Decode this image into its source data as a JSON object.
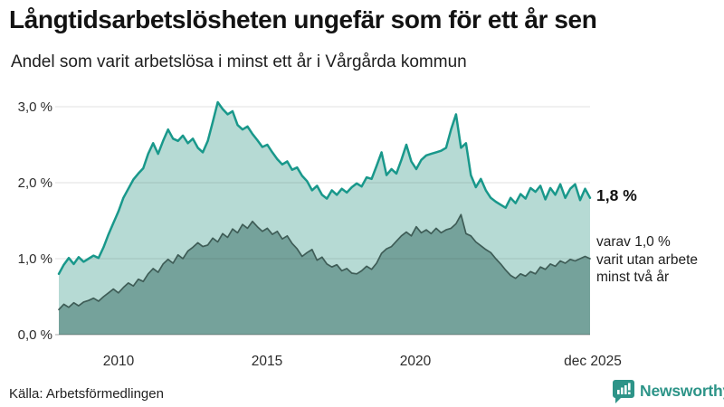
{
  "chart_data": {
    "type": "area",
    "title": "Långtidsarbetslösheten ungefär som för ett år sen",
    "subtitle": "Andel som varit arbetslösa i minst ett år i Vårgårda kommun",
    "x_start_year": 2008,
    "points_per_year": 6,
    "x_end_label": "dec 2025",
    "ylim": [
      0,
      3.2
    ],
    "grid": true,
    "legend_position": "none",
    "unit": "%",
    "yticks": [
      {
        "value": 0,
        "label": "0,0 %"
      },
      {
        "value": 1,
        "label": "1,0 %"
      },
      {
        "value": 2,
        "label": "2,0 %"
      },
      {
        "value": 3,
        "label": "3,0 %"
      }
    ],
    "xticks": [
      {
        "year": 2010,
        "label": "2010"
      },
      {
        "year": 2015,
        "label": "2015"
      },
      {
        "year": 2020,
        "label": "2020"
      },
      {
        "year": 2025.9,
        "label": "dec 2025"
      }
    ],
    "series": [
      {
        "name": "Andel som varit arbetslösa i minst ett år",
        "line_color": "#19988b",
        "fill_color": "#b6dad4",
        "latest_value": 1.8,
        "values": [
          0.8,
          0.92,
          1.01,
          0.93,
          1.02,
          0.96,
          1.0,
          1.04,
          1.01,
          1.15,
          1.32,
          1.47,
          1.62,
          1.8,
          1.92,
          2.04,
          2.12,
          2.19,
          2.38,
          2.52,
          2.38,
          2.55,
          2.7,
          2.58,
          2.55,
          2.62,
          2.52,
          2.58,
          2.46,
          2.4,
          2.55,
          2.8,
          3.06,
          2.97,
          2.9,
          2.94,
          2.76,
          2.7,
          2.74,
          2.64,
          2.56,
          2.47,
          2.5,
          2.4,
          2.31,
          2.24,
          2.28,
          2.17,
          2.2,
          2.09,
          2.02,
          1.9,
          1.96,
          1.84,
          1.79,
          1.9,
          1.84,
          1.92,
          1.87,
          1.94,
          1.99,
          1.95,
          2.07,
          2.05,
          2.22,
          2.4,
          2.1,
          2.18,
          2.12,
          2.3,
          2.5,
          2.28,
          2.18,
          2.3,
          2.36,
          2.38,
          2.4,
          2.42,
          2.46,
          2.7,
          2.9,
          2.46,
          2.52,
          2.1,
          1.94,
          2.05,
          1.9,
          1.8,
          1.75,
          1.71,
          1.67,
          1.8,
          1.73,
          1.85,
          1.79,
          1.93,
          1.88,
          1.96,
          1.78,
          1.93,
          1.84,
          1.98,
          1.8,
          1.92,
          1.98,
          1.77,
          1.92,
          1.8
        ]
      },
      {
        "name": "Andel som varit utan arbete minst två år",
        "line_color": "#3f5d57",
        "fill_color": "#75a29b",
        "latest_value": 1.0,
        "values": [
          0.33,
          0.4,
          0.36,
          0.42,
          0.38,
          0.43,
          0.45,
          0.48,
          0.44,
          0.5,
          0.55,
          0.6,
          0.55,
          0.62,
          0.68,
          0.64,
          0.73,
          0.7,
          0.8,
          0.87,
          0.82,
          0.93,
          0.99,
          0.94,
          1.05,
          1.0,
          1.1,
          1.15,
          1.21,
          1.16,
          1.18,
          1.27,
          1.22,
          1.33,
          1.28,
          1.39,
          1.34,
          1.45,
          1.4,
          1.49,
          1.42,
          1.36,
          1.4,
          1.32,
          1.36,
          1.26,
          1.3,
          1.2,
          1.13,
          1.03,
          1.08,
          1.12,
          0.98,
          1.02,
          0.93,
          0.89,
          0.92,
          0.84,
          0.87,
          0.81,
          0.8,
          0.84,
          0.9,
          0.86,
          0.94,
          1.07,
          1.13,
          1.16,
          1.23,
          1.3,
          1.35,
          1.3,
          1.42,
          1.34,
          1.38,
          1.33,
          1.4,
          1.34,
          1.38,
          1.4,
          1.46,
          1.58,
          1.33,
          1.3,
          1.22,
          1.17,
          1.12,
          1.08,
          1.0,
          0.93,
          0.85,
          0.78,
          0.74,
          0.8,
          0.77,
          0.83,
          0.8,
          0.89,
          0.86,
          0.93,
          0.9,
          0.97,
          0.94,
          0.99,
          0.97,
          1.0,
          1.03,
          1.0
        ]
      }
    ]
  },
  "annotations": {
    "primary": "1,8 %",
    "secondary": "varav 1,0 %\nvarit utan arbete\nminst två år"
  },
  "footer": {
    "source": "Källa: Arbetsförmedlingen",
    "brand": "Newsworthy"
  },
  "brand_color": "#2d9488"
}
